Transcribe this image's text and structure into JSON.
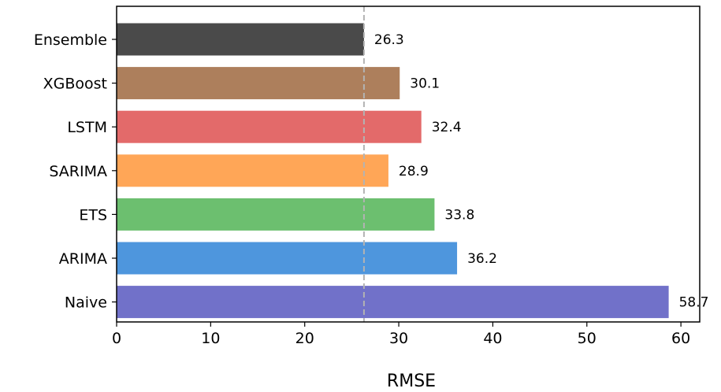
{
  "chart_data": {
    "type": "bar",
    "orientation": "horizontal",
    "categories": [
      "Ensemble",
      "XGBoost",
      "LSTM",
      "SARIMA",
      "ETS",
      "ARIMA",
      "Naive"
    ],
    "values": [
      26.3,
      30.1,
      32.4,
      28.9,
      33.8,
      36.2,
      58.7
    ],
    "data_labels": [
      "26.3",
      "30.1",
      "32.4",
      "28.9",
      "33.8",
      "36.2",
      "58.7"
    ],
    "colors": [
      "#4a4a4a",
      "#ad7f5c",
      "#e36a6a",
      "#ffa657",
      "#6cbf6f",
      "#4e96dd",
      "#7171c9"
    ],
    "xlabel": "RMSE",
    "ylabel": "",
    "title": "",
    "xlim": [
      0,
      62
    ],
    "xticks": [
      0,
      10,
      20,
      30,
      40,
      50,
      60
    ],
    "xtick_labels": [
      "0",
      "10",
      "20",
      "30",
      "40",
      "50",
      "60"
    ],
    "reference_line": {
      "value": 26.3,
      "style": "dashed",
      "color": "#b3b3b3"
    },
    "grid": false,
    "legend": "none"
  }
}
